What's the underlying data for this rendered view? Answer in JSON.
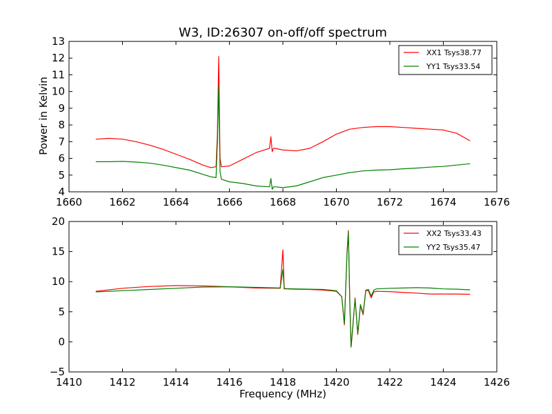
{
  "chart_data": [
    {
      "type": "line",
      "title": "W3, ID:26307 on-off/off spectrum",
      "xlabel": "",
      "ylabel": "Power in Kelvin",
      "xlim": [
        1660,
        1676
      ],
      "ylim": [
        4,
        13
      ],
      "xticks": [
        "1660",
        "1662",
        "1664",
        "1666",
        "1668",
        "1670",
        "1672",
        "1674",
        "1676"
      ],
      "yticks": [
        "4",
        "5",
        "6",
        "7",
        "8",
        "9",
        "10",
        "11",
        "12",
        "13"
      ],
      "legend_position": "top-right",
      "series": [
        {
          "name": "XX1 Tsys38.77",
          "color": "#ff0000",
          "x": [
            1661.0,
            1661.5,
            1662.0,
            1662.5,
            1663.0,
            1663.5,
            1664.0,
            1664.5,
            1665.0,
            1665.3,
            1665.5,
            1665.55,
            1665.6,
            1665.65,
            1665.7,
            1666.0,
            1666.5,
            1667.0,
            1667.5,
            1667.55,
            1667.6,
            1667.65,
            1667.7,
            1668.0,
            1668.5,
            1669.0,
            1669.5,
            1670.0,
            1670.5,
            1671.0,
            1671.5,
            1672.0,
            1672.5,
            1673.0,
            1673.5,
            1674.0,
            1674.5,
            1675.0
          ],
          "values": [
            7.15,
            7.2,
            7.15,
            7.0,
            6.8,
            6.55,
            6.25,
            5.95,
            5.6,
            5.45,
            5.5,
            7.5,
            12.1,
            6.0,
            5.5,
            5.55,
            5.95,
            6.35,
            6.6,
            7.3,
            6.4,
            6.6,
            6.6,
            6.5,
            6.45,
            6.6,
            7.0,
            7.45,
            7.75,
            7.85,
            7.9,
            7.9,
            7.85,
            7.8,
            7.75,
            7.7,
            7.5,
            7.05
          ]
        },
        {
          "name": "YY1 Tsys33.54",
          "color": "#008000",
          "x": [
            1661.0,
            1661.5,
            1662.0,
            1662.5,
            1663.0,
            1663.5,
            1664.0,
            1664.5,
            1665.0,
            1665.3,
            1665.5,
            1665.55,
            1665.6,
            1665.65,
            1665.7,
            1666.0,
            1666.5,
            1667.0,
            1667.5,
            1667.55,
            1667.6,
            1667.65,
            1667.7,
            1668.0,
            1668.5,
            1669.0,
            1669.5,
            1670.0,
            1670.5,
            1671.0,
            1671.5,
            1672.0,
            1672.5,
            1673.0,
            1673.5,
            1674.0,
            1674.5,
            1675.0
          ],
          "values": [
            5.8,
            5.8,
            5.82,
            5.78,
            5.72,
            5.6,
            5.45,
            5.3,
            5.05,
            4.9,
            4.85,
            7.0,
            10.3,
            5.2,
            4.75,
            4.6,
            4.5,
            4.35,
            4.3,
            4.8,
            4.15,
            4.3,
            4.3,
            4.25,
            4.35,
            4.6,
            4.85,
            5.0,
            5.15,
            5.25,
            5.3,
            5.32,
            5.38,
            5.42,
            5.48,
            5.52,
            5.6,
            5.68
          ]
        }
      ]
    },
    {
      "type": "line",
      "title": "",
      "xlabel": "Frequency (MHz)",
      "ylabel": "",
      "xlim": [
        1410,
        1426
      ],
      "ylim": [
        -5,
        20
      ],
      "xticks": [
        "1410",
        "1412",
        "1414",
        "1416",
        "1418",
        "1420",
        "1422",
        "1424",
        "1426"
      ],
      "yticks": [
        "−5",
        "0",
        "5",
        "10",
        "15",
        "20"
      ],
      "legend_position": "top-right",
      "series": [
        {
          "name": "XX2 Tsys33.43",
          "color": "#ff0000",
          "x": [
            1411.0,
            1412.0,
            1413.0,
            1414.0,
            1415.0,
            1416.0,
            1417.0,
            1417.9,
            1418.0,
            1418.05,
            1418.1,
            1418.5,
            1419.0,
            1419.5,
            1420.0,
            1420.2,
            1420.3,
            1420.4,
            1420.45,
            1420.5,
            1420.55,
            1420.6,
            1420.7,
            1420.8,
            1420.9,
            1421.0,
            1421.1,
            1421.2,
            1421.3,
            1421.4,
            1421.5,
            1422.0,
            1422.5,
            1423.0,
            1423.5,
            1424.0,
            1424.5,
            1425.0
          ],
          "values": [
            8.4,
            8.9,
            9.2,
            9.35,
            9.3,
            9.15,
            8.95,
            8.9,
            15.3,
            8.8,
            8.8,
            8.75,
            8.7,
            8.6,
            8.4,
            7.5,
            2.8,
            15.0,
            18.5,
            7.0,
            -0.9,
            1.5,
            7.3,
            1.2,
            6.0,
            4.5,
            8.5,
            8.5,
            7.3,
            8.3,
            8.4,
            8.35,
            8.2,
            8.1,
            7.95,
            7.95,
            7.95,
            7.9
          ]
        },
        {
          "name": "YY2 Tsys35.47",
          "color": "#008000",
          "x": [
            1411.0,
            1412.0,
            1413.0,
            1414.0,
            1415.0,
            1416.0,
            1417.0,
            1417.9,
            1418.0,
            1418.05,
            1418.1,
            1418.5,
            1419.0,
            1419.5,
            1420.0,
            1420.2,
            1420.3,
            1420.4,
            1420.45,
            1420.5,
            1420.55,
            1420.6,
            1420.7,
            1420.8,
            1420.9,
            1421.0,
            1421.1,
            1421.2,
            1421.3,
            1421.4,
            1421.5,
            1422.0,
            1422.5,
            1423.0,
            1423.5,
            1424.0,
            1424.5,
            1425.0
          ],
          "values": [
            8.3,
            8.5,
            8.7,
            8.9,
            9.1,
            9.15,
            9.05,
            8.95,
            12.0,
            8.9,
            8.85,
            8.8,
            8.75,
            8.7,
            8.5,
            7.5,
            3.0,
            14.8,
            18.2,
            6.8,
            -0.8,
            1.8,
            7.1,
            1.4,
            6.2,
            4.7,
            8.6,
            8.7,
            7.6,
            8.6,
            8.8,
            8.9,
            8.95,
            9.0,
            8.95,
            8.8,
            8.75,
            8.65
          ]
        }
      ]
    }
  ]
}
